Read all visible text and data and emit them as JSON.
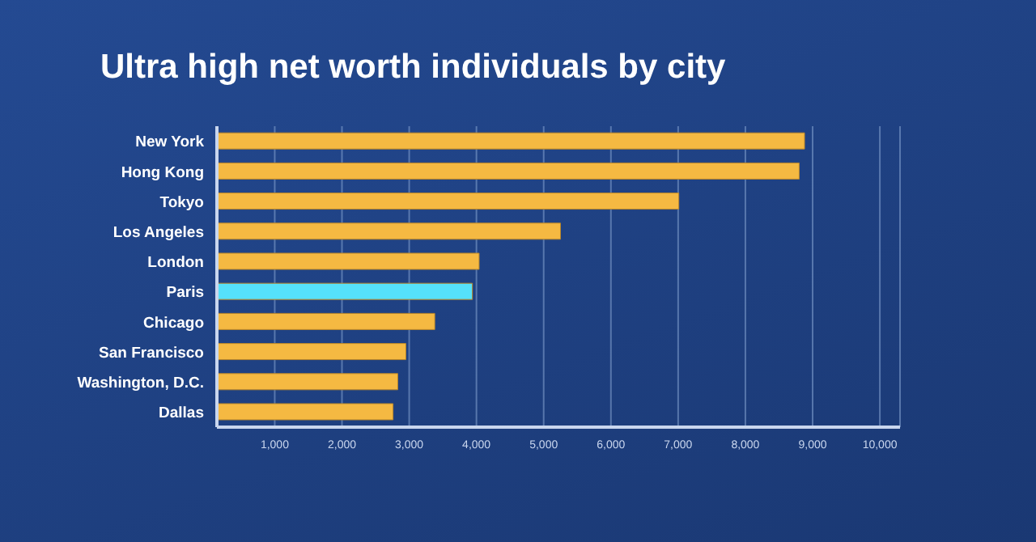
{
  "chart_data": {
    "type": "bar",
    "orientation": "horizontal",
    "title": "Ultra high net worth individuals by city",
    "categories": [
      "New York",
      "Hong Kong",
      "Tokyo",
      "Los Angeles",
      "London",
      "Paris",
      "Chicago",
      "San Francisco",
      "Washington, D.C.",
      "Dallas"
    ],
    "values": [
      8880,
      8800,
      7010,
      5250,
      4040,
      3940,
      3380,
      2950,
      2830,
      2760
    ],
    "colors": [
      "#f5b942",
      "#f5b942",
      "#f5b942",
      "#f5b942",
      "#f5b942",
      "#55e1fb",
      "#f5b942",
      "#f5b942",
      "#f5b942",
      "#f5b942"
    ],
    "xlim": [
      140,
      10300
    ],
    "xticks": [
      {
        "value": 1000,
        "label": "1,000"
      },
      {
        "value": 2000,
        "label": "2,000"
      },
      {
        "value": 3000,
        "label": "3,000"
      },
      {
        "value": 4000,
        "label": "4,000"
      },
      {
        "value": 5000,
        "label": "5,000"
      },
      {
        "value": 6000,
        "label": "6,000"
      },
      {
        "value": 7000,
        "label": "7,000"
      },
      {
        "value": 8000,
        "label": "8,000"
      },
      {
        "value": 9000,
        "label": "9,000"
      },
      {
        "value": 10000,
        "label": "10,000"
      }
    ],
    "grid": "x"
  }
}
